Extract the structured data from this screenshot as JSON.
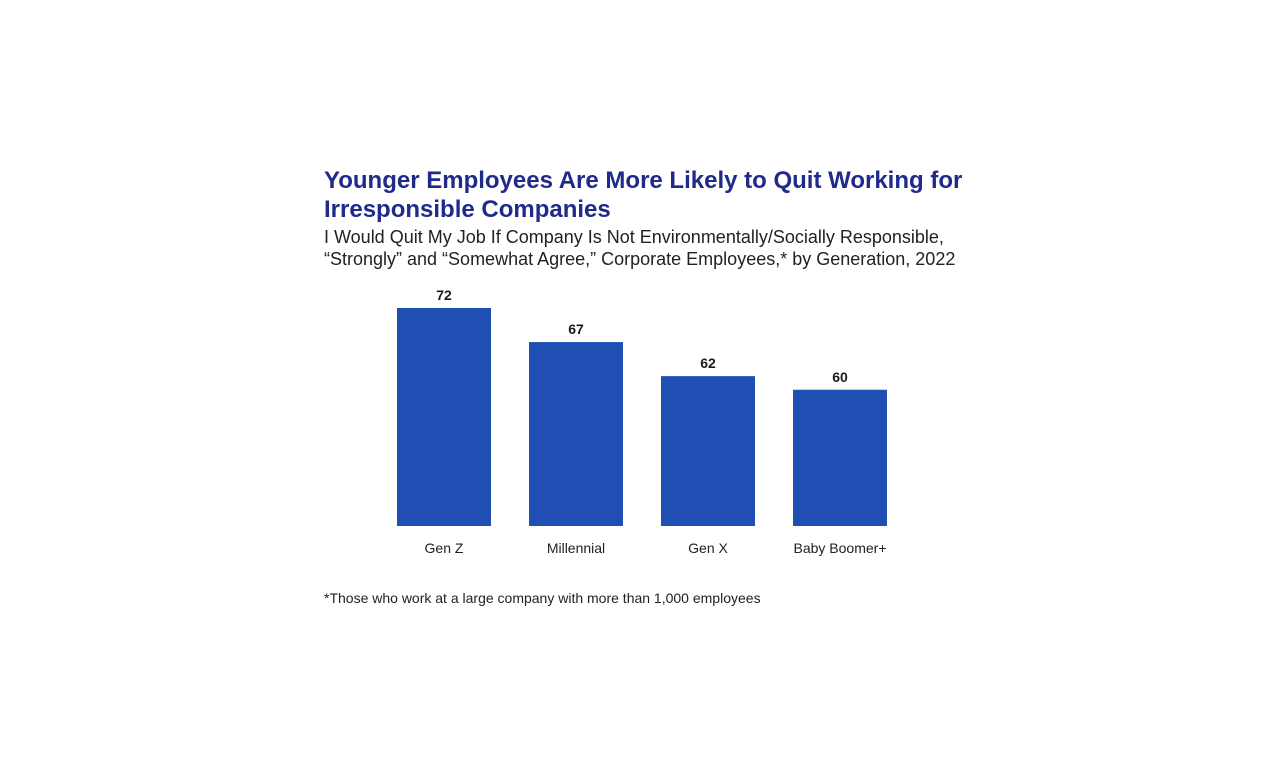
{
  "chart_data": {
    "type": "bar",
    "title": "Younger Employees Are More Likely to Quit Working for Irresponsible Companies",
    "subtitle": "I Would Quit My Job If Company Is Not Environmentally/Socially Responsible, “Strongly” and “Somewhat Agree,” Corporate Employees,* by Generation, 2022",
    "categories": [
      "Gen Z",
      "Millennial",
      "Gen X",
      "Baby Boomer+"
    ],
    "values": [
      72,
      67,
      62,
      60
    ],
    "xlabel": "",
    "ylabel": "",
    "ylim": [
      40,
      72
    ],
    "grid": false,
    "legend": "none",
    "bar_color": "#1f4fb3",
    "footnote": "*Those who work at a large company with more than 1,000 employees"
  }
}
